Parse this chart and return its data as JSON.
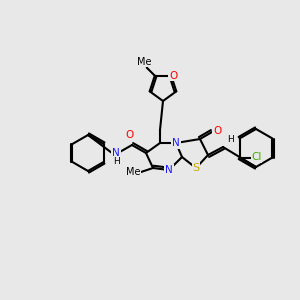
{
  "bg": "#e8e8e8",
  "lw": 1.5,
  "fs": 7.5,
  "figsize": [
    3.0,
    3.0
  ],
  "dpi": 100,
  "colors": {
    "bond": "black",
    "N": "#1a1aff",
    "O": "#ff0000",
    "S": "#ccaa00",
    "Cl": "#44aa00",
    "H": "black"
  }
}
